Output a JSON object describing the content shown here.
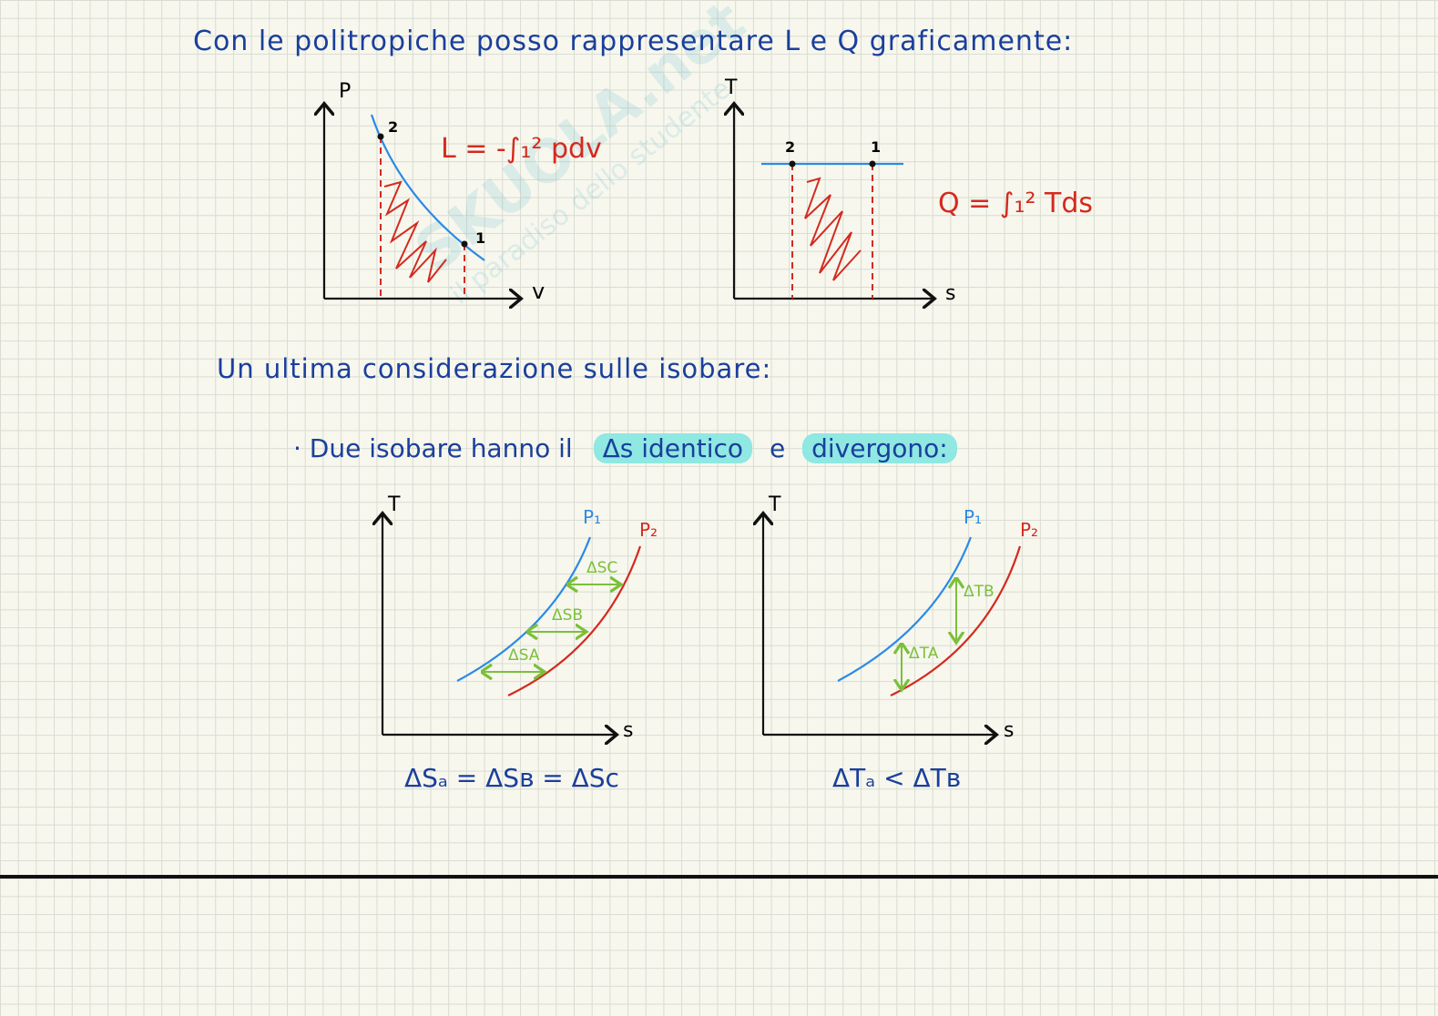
{
  "intro": "Con le politropiche posso rappresentare L e Q graficamente:",
  "diagram1": {
    "y_axis": "P",
    "x_axis": "v",
    "points": [
      "2",
      "1"
    ],
    "formula": "L = -∫₁² pdv",
    "colors": {
      "curve": "#2b8ae6",
      "fill": "#d42a1e"
    }
  },
  "diagram2": {
    "y_axis": "T",
    "x_axis": "s",
    "points": [
      "2",
      "1"
    ],
    "formula": "Q = ∫₁² Tds"
  },
  "consideration": "Un ultima considerazione sulle isobare:",
  "bullet": {
    "prefix": "· Due isobare hanno il",
    "highlight1": "Δs identico",
    "mid": "e",
    "highlight2": "divergono:"
  },
  "diagram3": {
    "y_axis": "T",
    "x_axis": "s",
    "curves": [
      "P₁",
      "P₂"
    ],
    "arrows": [
      "ΔSC",
      "ΔSB",
      "ΔSA"
    ],
    "caption": "ΔSₐ = ΔSʙ = ΔSc"
  },
  "diagram4": {
    "y_axis": "T",
    "x_axis": "s",
    "curves": [
      "P₁",
      "P₂"
    ],
    "arrows": [
      "ΔTB",
      "ΔTA"
    ],
    "caption": "ΔTₐ < ΔTʙ"
  },
  "watermark": "il paradiso dello studente",
  "watermark_brand": "SKUOLA.net"
}
